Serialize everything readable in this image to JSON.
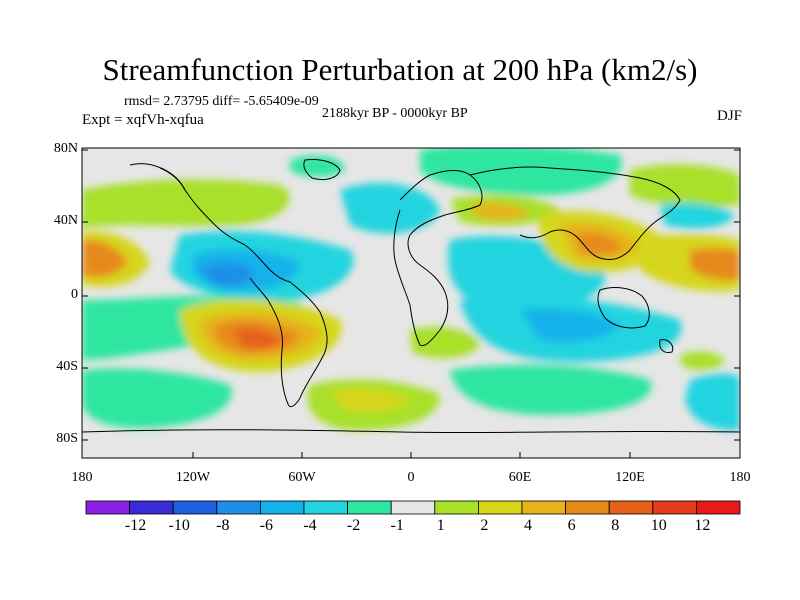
{
  "title": "Streamfunction Perturbation at 200 hPa (km2/s)",
  "rmsd_line": "rmsd= 2.73795 diff= -5.65409e-09",
  "experiment": "Expt = xqfVh-xqfua",
  "period": "2188kyr BP - 0000kyr BP",
  "season": "DJF",
  "lat_labels": [
    "80N",
    "40N",
    "0",
    "40S",
    "80S"
  ],
  "lon_labels": [
    "180",
    "120W",
    "60W",
    "0",
    "60E",
    "120E",
    "180"
  ],
  "colorbar": {
    "labels": [
      "-12",
      "-10",
      "-8",
      "-6",
      "-4",
      "-2",
      "-1",
      "1",
      "2",
      "4",
      "6",
      "8",
      "10",
      "12"
    ],
    "colors": [
      "#8a1fe6",
      "#3b2bd6",
      "#1f5fe0",
      "#1d8fe8",
      "#12b2ea",
      "#22d4df",
      "#2ee6a0",
      "#e6e6e6",
      "#a8e02a",
      "#d6d61a",
      "#e6b41a",
      "#e68a1a",
      "#e6601a",
      "#e63a1a",
      "#e61a1a"
    ]
  }
}
